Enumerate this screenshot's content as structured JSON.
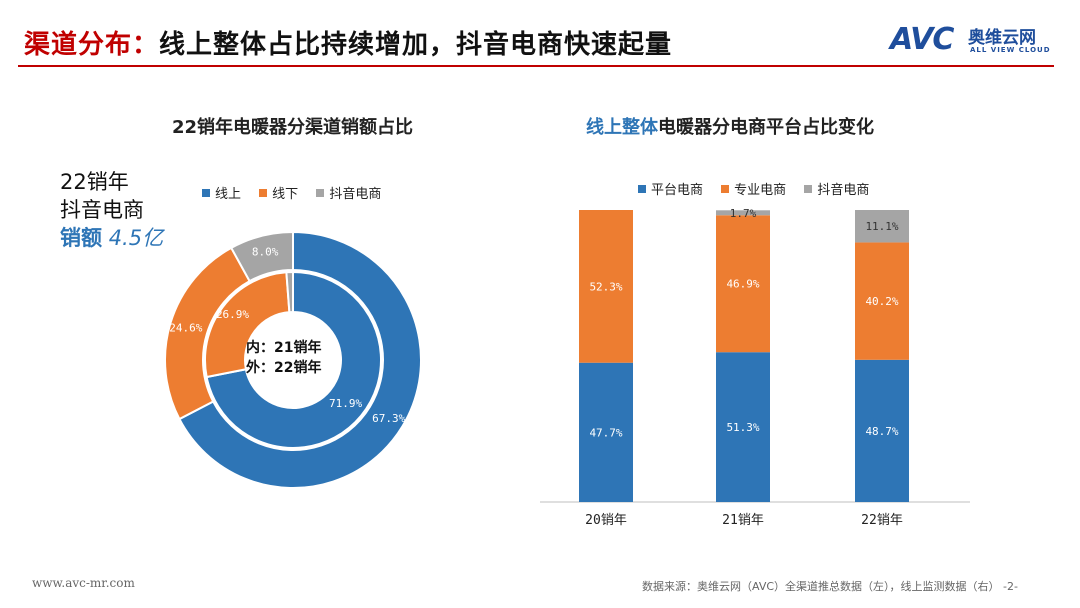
{
  "page": {
    "title_accent": "渠道分布：",
    "title_rest": "线上整体占比持续增加，抖音电商快速起量",
    "footer_url": "www.avc-mr.com",
    "footer_source": "数据来源：奥维云网（AVC）全渠道推总数据（左），线上监测数据（右） -2-"
  },
  "logo": {
    "mark": "AVC",
    "cn": "奥维云网",
    "en": "ALL VIEW CLOUD"
  },
  "callout": {
    "line1": "22销年",
    "line2": "抖音电商",
    "label": "销额",
    "value": "4.5亿"
  },
  "colors": {
    "online": "#2e75b6",
    "offline": "#ed7d31",
    "douyin": "#a5a5a5",
    "accent": "#c00000"
  },
  "chart_data": [
    {
      "type": "pie",
      "title": "22销年电暖器分渠道销额占比",
      "center_label_line1": "内：21销年",
      "center_label_line2": "外：22销年",
      "legend_position": "top",
      "categories": [
        "线上",
        "线下",
        "抖音电商"
      ],
      "series": [
        {
          "ring": "inner",
          "year": "21销年",
          "values": [
            71.9,
            26.9,
            1.2
          ],
          "labels": [
            "71.9%",
            "26.9%",
            ""
          ]
        },
        {
          "ring": "outer",
          "year": "22销年",
          "values": [
            67.3,
            24.6,
            8.0
          ],
          "labels": [
            "67.3%",
            "24.6%",
            "8.0%"
          ]
        }
      ]
    },
    {
      "type": "bar",
      "stacked": true,
      "title_highlight": "线上整体",
      "title_rest": "电暖器分电商平台占比变化",
      "legend_position": "top",
      "categories": [
        "20销年",
        "21销年",
        "22销年"
      ],
      "ylim": [
        0,
        100
      ],
      "grid": false,
      "series": [
        {
          "name": "平台电商",
          "values": [
            47.7,
            51.3,
            48.7
          ],
          "labels": [
            "47.7%",
            "51.3%",
            "48.7%"
          ]
        },
        {
          "name": "专业电商",
          "values": [
            52.3,
            46.9,
            40.2
          ],
          "labels": [
            "52.3%",
            "46.9%",
            "40.2%"
          ]
        },
        {
          "name": "抖音电商",
          "values": [
            0,
            1.7,
            11.1
          ],
          "labels": [
            "",
            "1.7%",
            "11.1%"
          ]
        }
      ]
    }
  ]
}
